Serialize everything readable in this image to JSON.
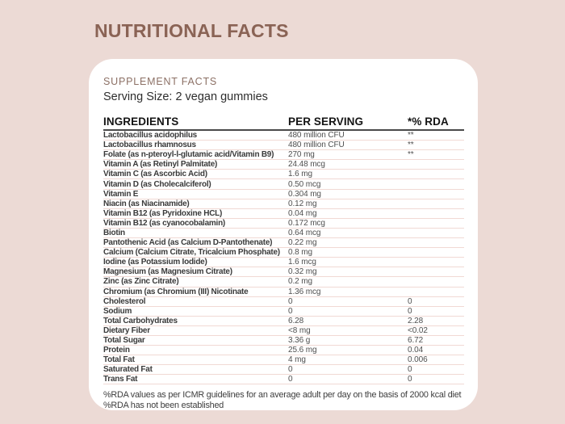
{
  "page": {
    "title": "NUTRITIONAL FACTS"
  },
  "colors": {
    "background": "#ecdad5",
    "card": "#ffffff",
    "title_accent": "#8a6355",
    "heading_accent": "#8c7065",
    "row_divider": "#f1d9d4",
    "header_rule": "#4a4a4a"
  },
  "card": {
    "heading": "SUPPLEMENT FACTS",
    "serving_size": "Serving Size: 2 vegan gummies",
    "table": {
      "columns": [
        "INGREDIENTS",
        "PER SERVING",
        "*% RDA"
      ],
      "rows": [
        {
          "name": "Lactobacillus acidophilus",
          "per_serving": "480 million CFU",
          "rda": "**"
        },
        {
          "name": "Lactobacillus rhamnosus",
          "per_serving": "480 million CFU",
          "rda": "**"
        },
        {
          "name": "Folate (as n-pteroyl-l-glutamic acid/Vitamin B9)",
          "per_serving": "270 mg",
          "rda": "**"
        },
        {
          "name": "Vitamin A (as Retinyl Palmitate)",
          "per_serving": "24.48 mcg",
          "rda": ""
        },
        {
          "name": "Vitamin C (as Ascorbic Acid)",
          "per_serving": "1.6 mg",
          "rda": ""
        },
        {
          "name": "Vitamin D (as Cholecalciferol)",
          "per_serving": "0.50 mcg",
          "rda": ""
        },
        {
          "name": "Vitamin E",
          "per_serving": "0.304 mg",
          "rda": ""
        },
        {
          "name": "Niacin (as Niacinamide)",
          "per_serving": "0.12 mg",
          "rda": ""
        },
        {
          "name": "Vitamin B12 (as Pyridoxine HCL)",
          "per_serving": "0.04 mg",
          "rda": ""
        },
        {
          "name": "Vitamin B12 (as cyanocobalamin)",
          "per_serving": "0.172 mcg",
          "rda": ""
        },
        {
          "name": "Biotin",
          "per_serving": "0.64 mcg",
          "rda": ""
        },
        {
          "name": "Pantothenic Acid (as Calcium D-Pantothenate)",
          "per_serving": "0.22 mg",
          "rda": ""
        },
        {
          "name": "Calcium (Calcium Citrate, Tricalcium Phosphate)",
          "per_serving": "0.8 mg",
          "rda": ""
        },
        {
          "name": "Iodine (as Potassium Iodide)",
          "per_serving": "1.6 mcg",
          "rda": ""
        },
        {
          "name": "Magnesium (as Magnesium Citrate)",
          "per_serving": "0.32 mg",
          "rda": ""
        },
        {
          "name": "Zinc (as Zinc Citrate)",
          "per_serving": "0.2 mg",
          "rda": ""
        },
        {
          "name": "Chromium (as Chromium (III) Nicotinate",
          "per_serving": "1.36 mcg",
          "rda": ""
        },
        {
          "name": "Cholesterol",
          "per_serving": "0",
          "rda": "0"
        },
        {
          "name": "Sodium",
          "per_serving": "0",
          "rda": "0"
        },
        {
          "name": "Total Carbohydrates",
          "per_serving": "6.28",
          "rda": "2.28"
        },
        {
          "name": "Dietary Fiber",
          "per_serving": "<8 mg",
          "rda": "<0.02"
        },
        {
          "name": "Total Sugar",
          "per_serving": "3.36 g",
          "rda": "6.72"
        },
        {
          "name": "Protein",
          "per_serving": "25.6 mg",
          "rda": "0.04"
        },
        {
          "name": "Total Fat",
          "per_serving": "4 mg",
          "rda": "0.006"
        },
        {
          "name": "Saturated Fat",
          "per_serving": "0",
          "rda": "0"
        },
        {
          "name": "Trans Fat",
          "per_serving": "0",
          "rda": "0"
        }
      ]
    },
    "footnotes": [
      "%RDA values as per ICMR guidelines for an average adult per day on the basis of 2000 kcal diet",
      "%RDA has not been established"
    ]
  }
}
